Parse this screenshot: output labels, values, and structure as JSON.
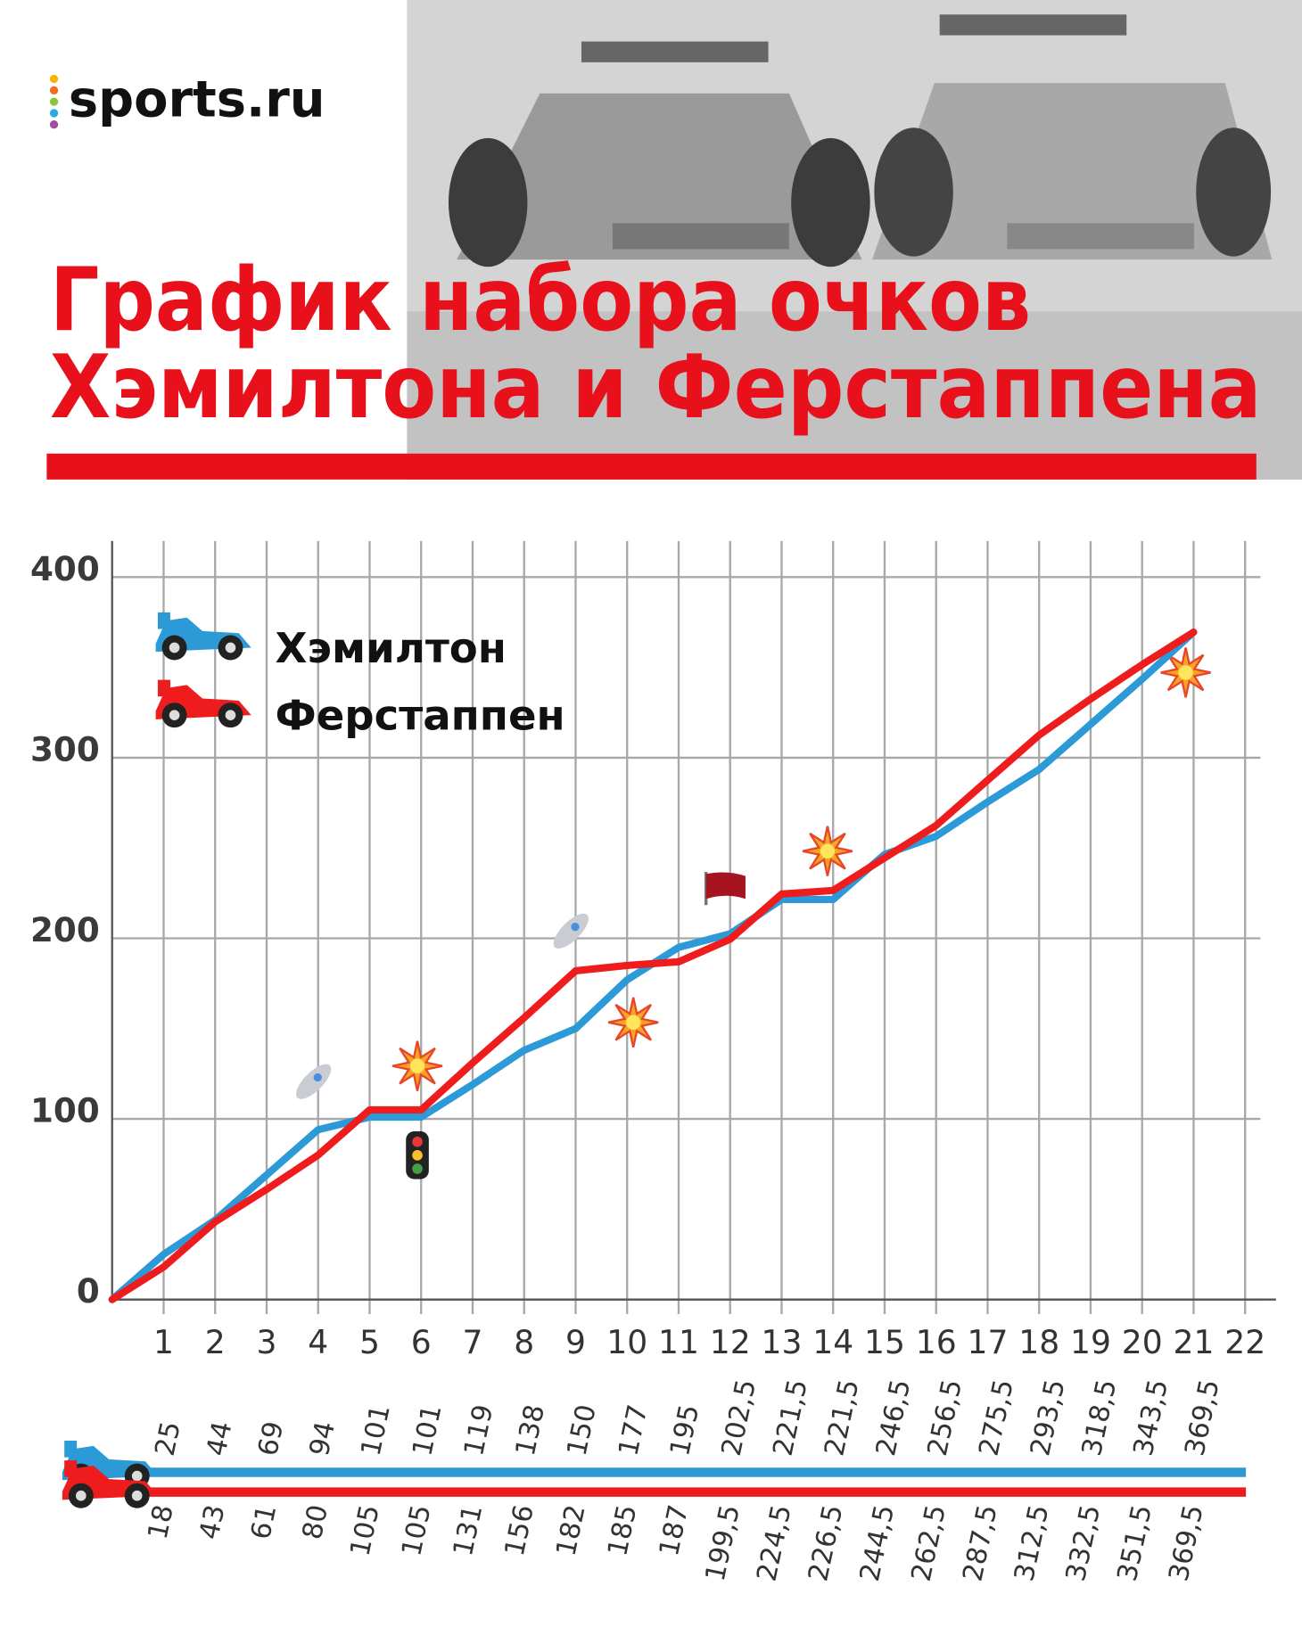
{
  "header": {
    "logo": "sports.ru",
    "title": [
      "График набора очков",
      "Хэмилтона и Ферстаппена"
    ]
  },
  "chart_data": {
    "type": "line",
    "x": [
      0,
      1,
      2,
      3,
      4,
      5,
      6,
      7,
      8,
      9,
      10,
      11,
      12,
      13,
      14,
      15,
      16,
      17,
      18,
      19,
      20,
      21
    ],
    "series": [
      {
        "name": "Хэмилтон",
        "color": "#2b9ad6",
        "values": [
          0,
          25,
          44,
          69,
          94,
          101,
          101,
          119,
          138,
          150,
          177,
          195,
          202.5,
          221.5,
          221.5,
          246.5,
          256.5,
          275.5,
          293.5,
          318.5,
          343.5,
          369.5
        ],
        "value_labels": [
          null,
          "25",
          "44",
          "69",
          "94",
          "101",
          "101",
          "119",
          "138",
          "150",
          "177",
          "195",
          "202,5",
          "221,5",
          "221,5",
          "246,5",
          "256,5",
          "275,5",
          "293,5",
          "318,5",
          "343,5",
          "369,5"
        ]
      },
      {
        "name": "Ферстаппен",
        "color": "#ee1c1c",
        "values": [
          0,
          18,
          43,
          61,
          80,
          105,
          105,
          131,
          156,
          182,
          185,
          187,
          199.5,
          224.5,
          226.5,
          244.5,
          262.5,
          287.5,
          312.5,
          332.5,
          351.5,
          369.5
        ],
        "value_labels": [
          null,
          "18",
          "43",
          "61",
          "80",
          "105",
          "105",
          "131",
          "156",
          "182",
          "185",
          "187",
          "199,5",
          "224,5",
          "226,5",
          "244,5",
          "262,5",
          "287,5",
          "312,5",
          "332,5",
          "351,5",
          "369,5"
        ]
      }
    ],
    "xlim": [
      0,
      22.6
    ],
    "xticks": [
      1,
      2,
      3,
      4,
      5,
      6,
      7,
      8,
      9,
      10,
      11,
      12,
      13,
      14,
      15,
      16,
      17,
      18,
      19,
      20,
      21,
      22
    ],
    "ylim": [
      0,
      420
    ],
    "yticks": [
      0,
      100,
      200,
      300,
      400
    ],
    "grid": true
  }
}
